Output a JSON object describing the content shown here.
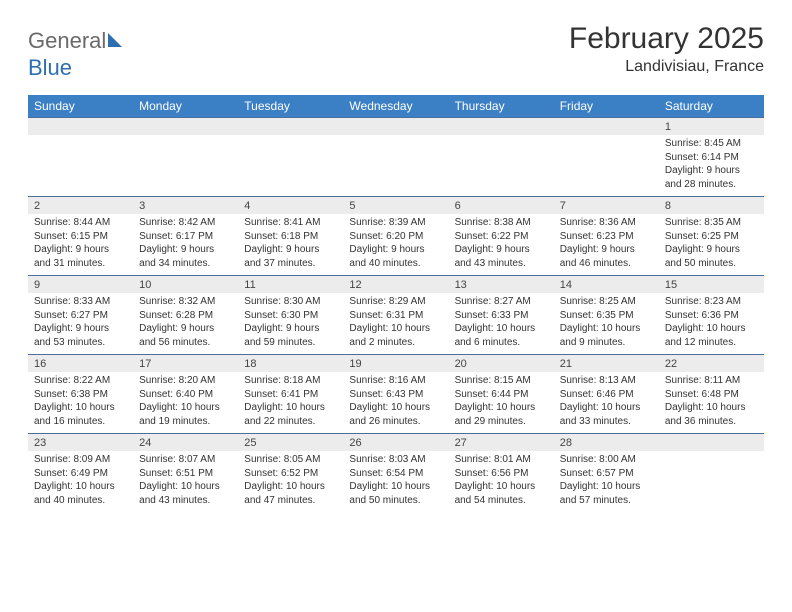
{
  "logo": {
    "text_part1": "General",
    "text_part2": "Blue",
    "icon_color": "#2f6fb0"
  },
  "title": "February 2025",
  "location": "Landivisiau, France",
  "colors": {
    "header_bg": "#3b7fc4",
    "header_text": "#ffffff",
    "row_divider": "#4a6f9a",
    "daynum_bg": "#ececec",
    "text": "#333333",
    "logo_gray": "#6a6a6a",
    "logo_blue": "#2f6fb0",
    "page_bg": "#ffffff"
  },
  "day_names": [
    "Sunday",
    "Monday",
    "Tuesday",
    "Wednesday",
    "Thursday",
    "Friday",
    "Saturday"
  ],
  "weeks": [
    [
      {
        "n": "",
        "sunrise": "",
        "sunset": "",
        "daylight": ""
      },
      {
        "n": "",
        "sunrise": "",
        "sunset": "",
        "daylight": ""
      },
      {
        "n": "",
        "sunrise": "",
        "sunset": "",
        "daylight": ""
      },
      {
        "n": "",
        "sunrise": "",
        "sunset": "",
        "daylight": ""
      },
      {
        "n": "",
        "sunrise": "",
        "sunset": "",
        "daylight": ""
      },
      {
        "n": "",
        "sunrise": "",
        "sunset": "",
        "daylight": ""
      },
      {
        "n": "1",
        "sunrise": "Sunrise: 8:45 AM",
        "sunset": "Sunset: 6:14 PM",
        "daylight": "Daylight: 9 hours and 28 minutes."
      }
    ],
    [
      {
        "n": "2",
        "sunrise": "Sunrise: 8:44 AM",
        "sunset": "Sunset: 6:15 PM",
        "daylight": "Daylight: 9 hours and 31 minutes."
      },
      {
        "n": "3",
        "sunrise": "Sunrise: 8:42 AM",
        "sunset": "Sunset: 6:17 PM",
        "daylight": "Daylight: 9 hours and 34 minutes."
      },
      {
        "n": "4",
        "sunrise": "Sunrise: 8:41 AM",
        "sunset": "Sunset: 6:18 PM",
        "daylight": "Daylight: 9 hours and 37 minutes."
      },
      {
        "n": "5",
        "sunrise": "Sunrise: 8:39 AM",
        "sunset": "Sunset: 6:20 PM",
        "daylight": "Daylight: 9 hours and 40 minutes."
      },
      {
        "n": "6",
        "sunrise": "Sunrise: 8:38 AM",
        "sunset": "Sunset: 6:22 PM",
        "daylight": "Daylight: 9 hours and 43 minutes."
      },
      {
        "n": "7",
        "sunrise": "Sunrise: 8:36 AM",
        "sunset": "Sunset: 6:23 PM",
        "daylight": "Daylight: 9 hours and 46 minutes."
      },
      {
        "n": "8",
        "sunrise": "Sunrise: 8:35 AM",
        "sunset": "Sunset: 6:25 PM",
        "daylight": "Daylight: 9 hours and 50 minutes."
      }
    ],
    [
      {
        "n": "9",
        "sunrise": "Sunrise: 8:33 AM",
        "sunset": "Sunset: 6:27 PM",
        "daylight": "Daylight: 9 hours and 53 minutes."
      },
      {
        "n": "10",
        "sunrise": "Sunrise: 8:32 AM",
        "sunset": "Sunset: 6:28 PM",
        "daylight": "Daylight: 9 hours and 56 minutes."
      },
      {
        "n": "11",
        "sunrise": "Sunrise: 8:30 AM",
        "sunset": "Sunset: 6:30 PM",
        "daylight": "Daylight: 9 hours and 59 minutes."
      },
      {
        "n": "12",
        "sunrise": "Sunrise: 8:29 AM",
        "sunset": "Sunset: 6:31 PM",
        "daylight": "Daylight: 10 hours and 2 minutes."
      },
      {
        "n": "13",
        "sunrise": "Sunrise: 8:27 AM",
        "sunset": "Sunset: 6:33 PM",
        "daylight": "Daylight: 10 hours and 6 minutes."
      },
      {
        "n": "14",
        "sunrise": "Sunrise: 8:25 AM",
        "sunset": "Sunset: 6:35 PM",
        "daylight": "Daylight: 10 hours and 9 minutes."
      },
      {
        "n": "15",
        "sunrise": "Sunrise: 8:23 AM",
        "sunset": "Sunset: 6:36 PM",
        "daylight": "Daylight: 10 hours and 12 minutes."
      }
    ],
    [
      {
        "n": "16",
        "sunrise": "Sunrise: 8:22 AM",
        "sunset": "Sunset: 6:38 PM",
        "daylight": "Daylight: 10 hours and 16 minutes."
      },
      {
        "n": "17",
        "sunrise": "Sunrise: 8:20 AM",
        "sunset": "Sunset: 6:40 PM",
        "daylight": "Daylight: 10 hours and 19 minutes."
      },
      {
        "n": "18",
        "sunrise": "Sunrise: 8:18 AM",
        "sunset": "Sunset: 6:41 PM",
        "daylight": "Daylight: 10 hours and 22 minutes."
      },
      {
        "n": "19",
        "sunrise": "Sunrise: 8:16 AM",
        "sunset": "Sunset: 6:43 PM",
        "daylight": "Daylight: 10 hours and 26 minutes."
      },
      {
        "n": "20",
        "sunrise": "Sunrise: 8:15 AM",
        "sunset": "Sunset: 6:44 PM",
        "daylight": "Daylight: 10 hours and 29 minutes."
      },
      {
        "n": "21",
        "sunrise": "Sunrise: 8:13 AM",
        "sunset": "Sunset: 6:46 PM",
        "daylight": "Daylight: 10 hours and 33 minutes."
      },
      {
        "n": "22",
        "sunrise": "Sunrise: 8:11 AM",
        "sunset": "Sunset: 6:48 PM",
        "daylight": "Daylight: 10 hours and 36 minutes."
      }
    ],
    [
      {
        "n": "23",
        "sunrise": "Sunrise: 8:09 AM",
        "sunset": "Sunset: 6:49 PM",
        "daylight": "Daylight: 10 hours and 40 minutes."
      },
      {
        "n": "24",
        "sunrise": "Sunrise: 8:07 AM",
        "sunset": "Sunset: 6:51 PM",
        "daylight": "Daylight: 10 hours and 43 minutes."
      },
      {
        "n": "25",
        "sunrise": "Sunrise: 8:05 AM",
        "sunset": "Sunset: 6:52 PM",
        "daylight": "Daylight: 10 hours and 47 minutes."
      },
      {
        "n": "26",
        "sunrise": "Sunrise: 8:03 AM",
        "sunset": "Sunset: 6:54 PM",
        "daylight": "Daylight: 10 hours and 50 minutes."
      },
      {
        "n": "27",
        "sunrise": "Sunrise: 8:01 AM",
        "sunset": "Sunset: 6:56 PM",
        "daylight": "Daylight: 10 hours and 54 minutes."
      },
      {
        "n": "28",
        "sunrise": "Sunrise: 8:00 AM",
        "sunset": "Sunset: 6:57 PM",
        "daylight": "Daylight: 10 hours and 57 minutes."
      },
      {
        "n": "",
        "sunrise": "",
        "sunset": "",
        "daylight": ""
      }
    ]
  ]
}
